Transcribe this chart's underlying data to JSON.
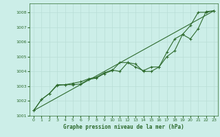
{
  "title": "Graphe pression niveau de la mer (hPa)",
  "background_color": "#cceee8",
  "grid_color": "#b8ddd6",
  "line_color": "#2d6a2d",
  "xlim": [
    -0.5,
    23.5
  ],
  "ylim": [
    1001.0,
    1008.6
  ],
  "yticks": [
    1001,
    1002,
    1003,
    1004,
    1005,
    1006,
    1007,
    1008
  ],
  "xticks": [
    0,
    1,
    2,
    3,
    4,
    5,
    6,
    7,
    8,
    9,
    10,
    11,
    12,
    13,
    14,
    15,
    16,
    17,
    18,
    19,
    20,
    21,
    22,
    23
  ],
  "series1_x": [
    0,
    1,
    2,
    3,
    4,
    5,
    6,
    7,
    8,
    9,
    10,
    11,
    12,
    13,
    14,
    15,
    16,
    17,
    18,
    19,
    20,
    21,
    22,
    23
  ],
  "series1_y": [
    1001.35,
    1002.1,
    1002.5,
    1003.1,
    1003.1,
    1003.2,
    1003.3,
    1003.5,
    1003.6,
    1003.9,
    1004.1,
    1004.0,
    1004.6,
    1004.3,
    1004.05,
    1004.3,
    1004.3,
    1005.3,
    1006.2,
    1006.5,
    1007.1,
    1008.0,
    1008.0,
    1008.1
  ],
  "series2_x": [
    0,
    1,
    2,
    3,
    4,
    5,
    6,
    7,
    8,
    9,
    10,
    11,
    12,
    13,
    14,
    15,
    16,
    17,
    18,
    19,
    20,
    21,
    22,
    23
  ],
  "series2_y": [
    1001.35,
    1002.1,
    1002.5,
    1003.05,
    1003.1,
    1003.1,
    1003.15,
    1003.45,
    1003.55,
    1003.85,
    1004.05,
    1004.6,
    1004.6,
    1004.5,
    1004.0,
    1004.0,
    1004.3,
    1005.0,
    1005.4,
    1006.5,
    1006.2,
    1006.9,
    1008.05,
    1008.1
  ],
  "line1_x": [
    0,
    23
  ],
  "line1_y": [
    1001.35,
    1008.1
  ]
}
